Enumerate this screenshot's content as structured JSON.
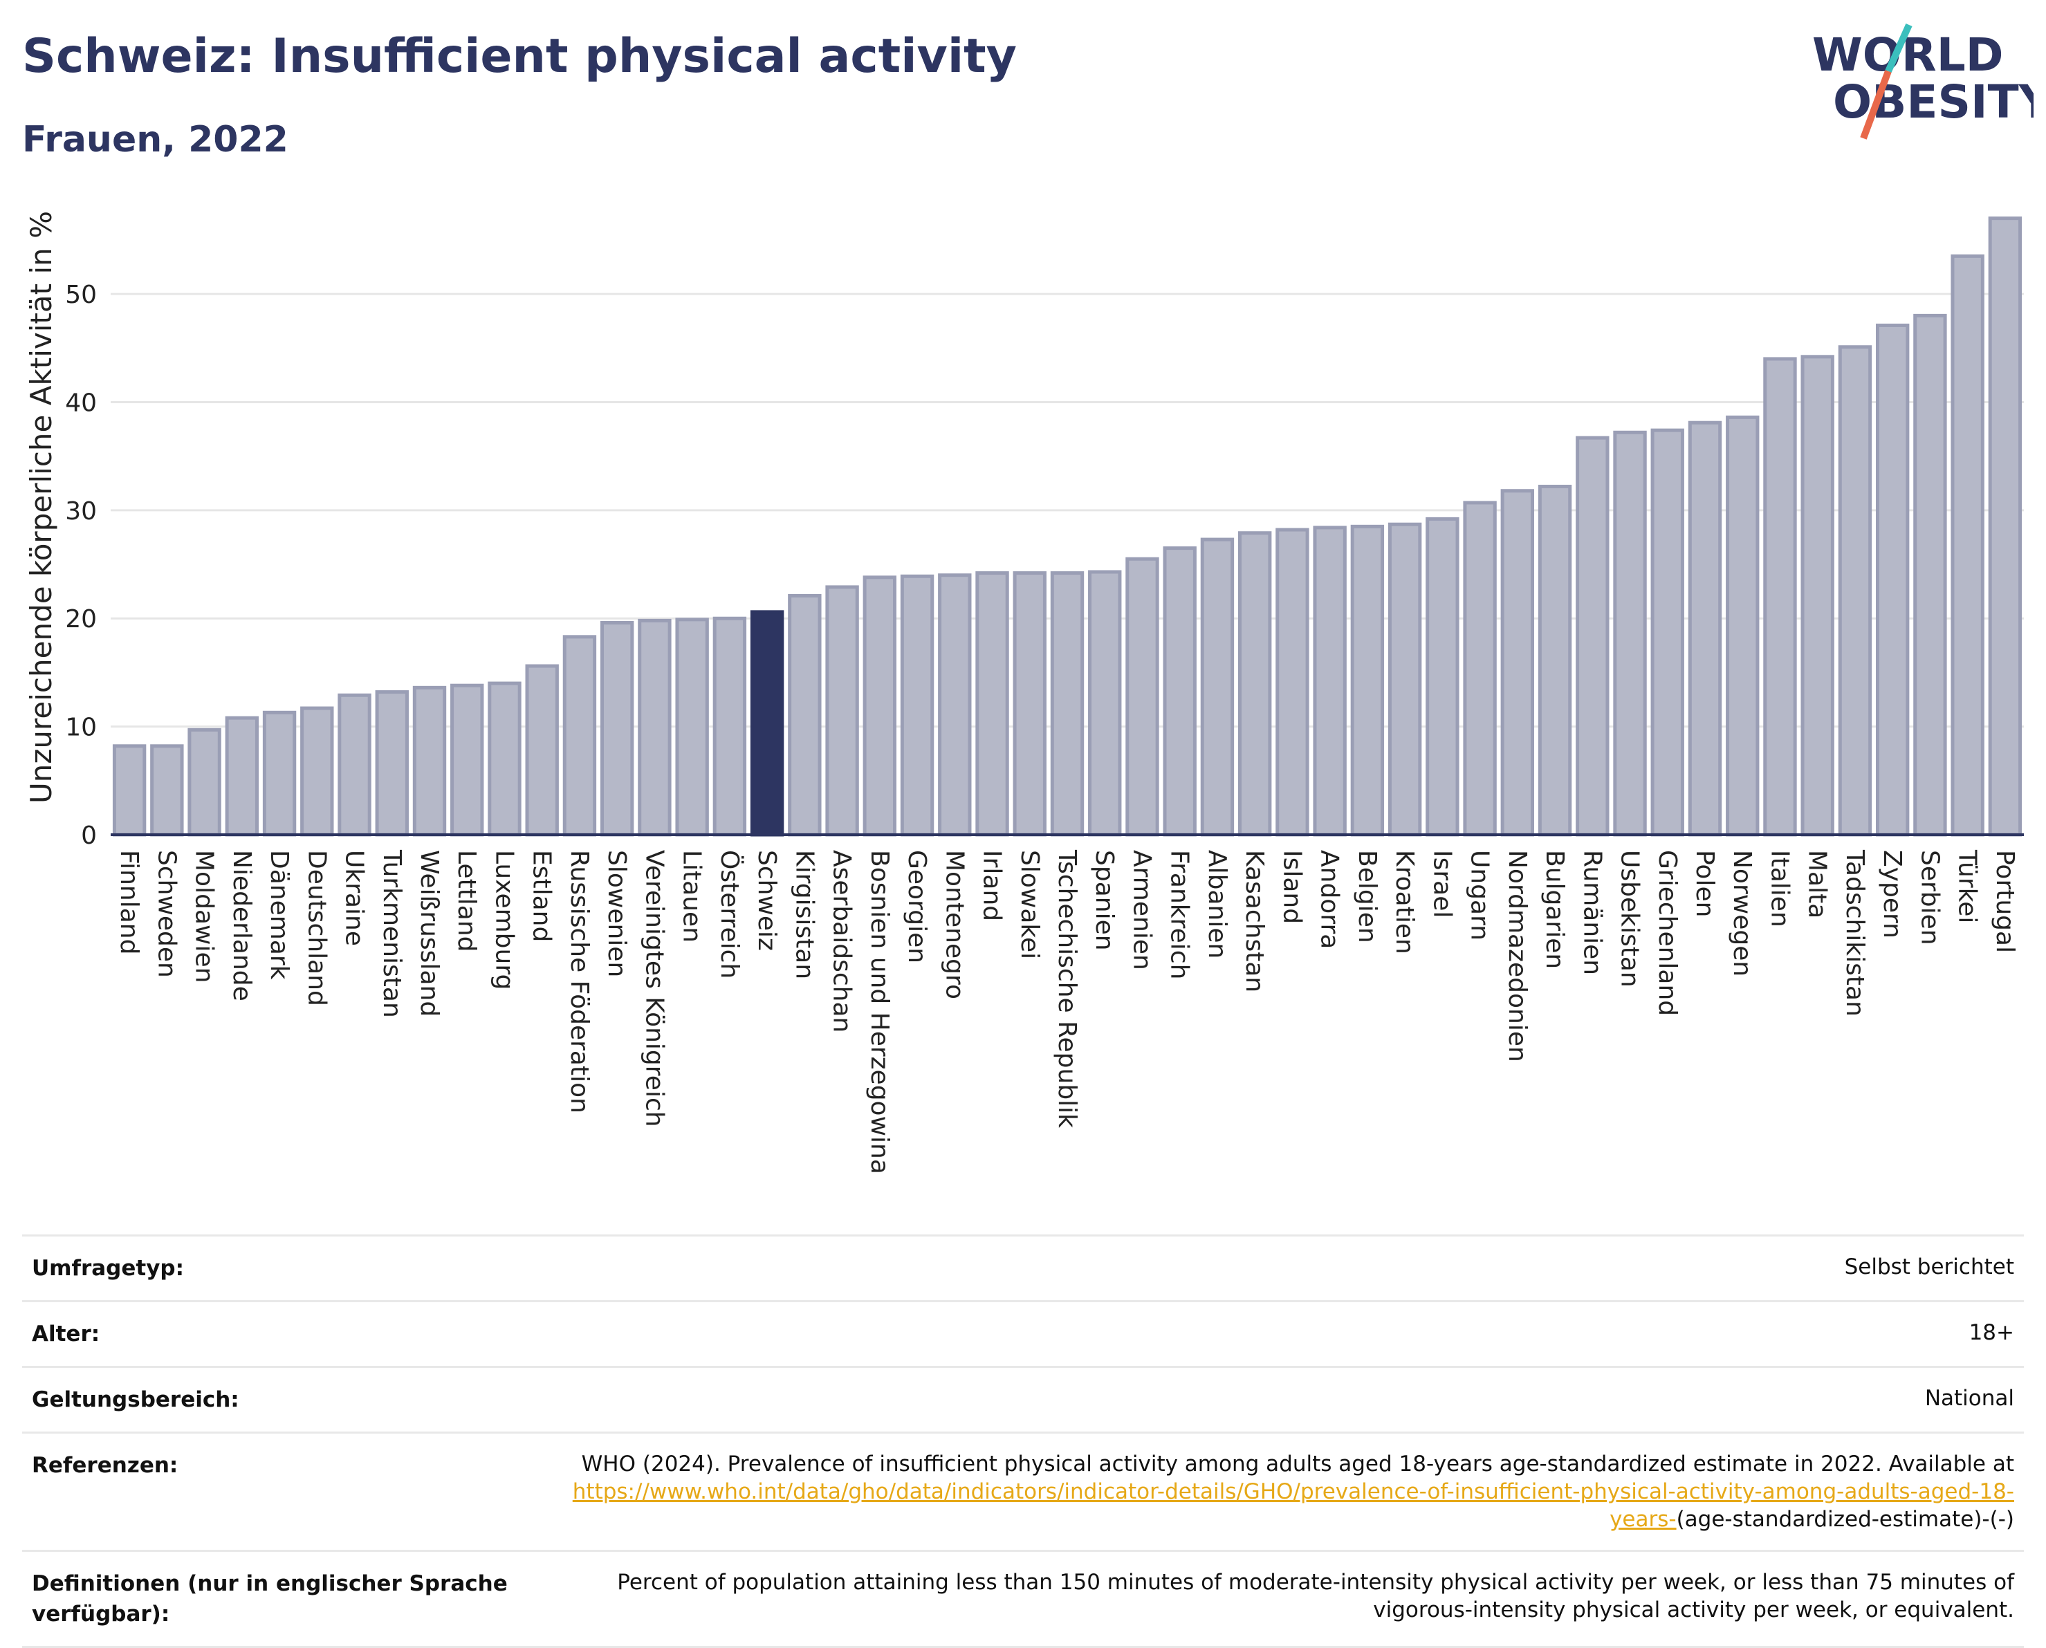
{
  "header": {
    "title": "Schweiz: Insufficient physical activity",
    "subtitle": "Frauen, 2022"
  },
  "logo": {
    "line1": "WORLD",
    "line2": "OBESITY",
    "slash_colors": [
      "#e8684a",
      "#3bbfbd"
    ],
    "text_color": "#2d3561"
  },
  "colors": {
    "bar_default": "#b5b8c8",
    "bar_border": "#9a9eb5",
    "bar_highlight": "#2d3561",
    "grid": "#e6e6e6",
    "axis": "#2d3561"
  },
  "chart_data": {
    "type": "bar",
    "ylabel": "Unzureichende körperliche Aktivität in %",
    "ylim": [
      0,
      58
    ],
    "yticks": [
      0,
      10,
      20,
      30,
      40,
      50
    ],
    "grid": true,
    "highlight": "Schweiz",
    "categories": [
      "Finnland",
      "Schweden",
      "Moldawien",
      "Niederlande",
      "Dänemark",
      "Deutschland",
      "Ukraine",
      "Turkmenistan",
      "Weißrussland",
      "Lettland",
      "Luxemburg",
      "Estland",
      "Russische Föderation",
      "Slowenien",
      "Vereinigtes Königreich",
      "Litauen",
      "Österreich",
      "Schweiz",
      "Kirgisistan",
      "Aserbaidschan",
      "Bosnien und Herzegowina",
      "Georgien",
      "Montenegro",
      "Irland",
      "Slowakei",
      "Tschechische Republik",
      "Spanien",
      "Armenien",
      "Frankreich",
      "Albanien",
      "Kasachstan",
      "Island",
      "Andorra",
      "Belgien",
      "Kroatien",
      "Israel",
      "Ungarn",
      "Nordmazedonien",
      "Bulgarien",
      "Rumänien",
      "Usbekistan",
      "Griechenland",
      "Polen",
      "Norwegen",
      "Italien",
      "Malta",
      "Tadschikistan",
      "Zypern",
      "Serbien",
      "Türkei",
      "Portugal"
    ],
    "values": [
      8.2,
      8.2,
      9.7,
      10.8,
      11.3,
      11.7,
      12.9,
      13.2,
      13.6,
      13.8,
      14.0,
      15.6,
      18.3,
      19.6,
      19.8,
      19.9,
      20.0,
      20.6,
      22.1,
      22.9,
      23.8,
      23.9,
      24.0,
      24.2,
      24.2,
      24.2,
      24.3,
      25.5,
      26.5,
      27.3,
      27.9,
      28.2,
      28.4,
      28.5,
      28.7,
      29.2,
      30.7,
      31.8,
      32.2,
      36.7,
      37.2,
      37.4,
      38.1,
      38.6,
      44.0,
      44.2,
      45.1,
      47.1,
      48.0,
      53.5,
      57.0
    ]
  },
  "meta": {
    "rows": [
      {
        "label": "Umfragetyp:",
        "value": "Selbst berichtet"
      },
      {
        "label": "Alter:",
        "value": "18+"
      },
      {
        "label": "Geltungsbereich:",
        "value": "National"
      }
    ],
    "references": {
      "label": "Referenzen:",
      "text": "WHO (2024). Prevalence of insufficient physical activity among adults aged 18-years age-standardized estimate in 2022. Available at",
      "link": "https://www.who.int/data/gho/data/indicators/indicator-details/GHO/prevalence-of-insufficient-physical-activity-among-adults-aged-18-years-",
      "suffix": "(age-standardized-estimate)-(-)"
    },
    "definitions": {
      "label": "Definitionen (nur in englischer Sprache verfügbar):",
      "value": "Percent of population attaining less than 150 minutes of moderate-intensity physical activity per week, or less than 75 minutes of vigorous-intensity physical activity per week, or equivalent."
    }
  }
}
